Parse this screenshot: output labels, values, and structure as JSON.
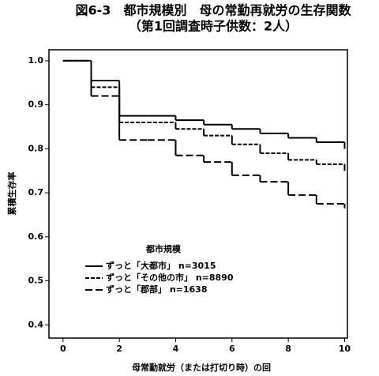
{
  "chart_data": {
    "type": "step",
    "title": "図6-3　都市規模別　母の常勤再就労の生存関数",
    "subtitle": "（第1回調査時子供数：2人）",
    "x_label": "母常勤就労（または打切り時）の回",
    "y_label": "累積生存率",
    "legend_title": "都市規模",
    "x": [
      0,
      1,
      2,
      3,
      4,
      5,
      6,
      7,
      8,
      9,
      10
    ],
    "series": [
      {
        "name": "ずっと「大都市」 n=3015",
        "color": "#000000",
        "line_style": "solid",
        "values": [
          1.0,
          0.955,
          0.875,
          0.875,
          0.865,
          0.855,
          0.845,
          0.835,
          0.825,
          0.815,
          0.8
        ]
      },
      {
        "name": "ずっと「その他の市」 n=8890",
        "color": "#000000",
        "line_style": "dotted",
        "values": [
          1.0,
          0.94,
          0.86,
          0.86,
          0.845,
          0.83,
          0.81,
          0.79,
          0.775,
          0.765,
          0.75
        ]
      },
      {
        "name": "ずっと「郡部」 n=1638",
        "color": "#000000",
        "line_style": "dashed",
        "values": [
          1.0,
          0.92,
          0.82,
          0.82,
          0.785,
          0.77,
          0.74,
          0.725,
          0.695,
          0.675,
          0.665
        ]
      }
    ],
    "xlim": [
      -0.5,
      10.1
    ],
    "xticks": [
      0,
      2,
      4,
      6,
      8,
      10
    ],
    "ylim": [
      0.37,
      1.025
    ],
    "yticks": [
      0.4,
      0.5,
      0.6,
      0.7,
      0.8,
      0.9,
      {
        "value": 1,
        "label": "1.0"
      }
    ],
    "grid": false
  }
}
